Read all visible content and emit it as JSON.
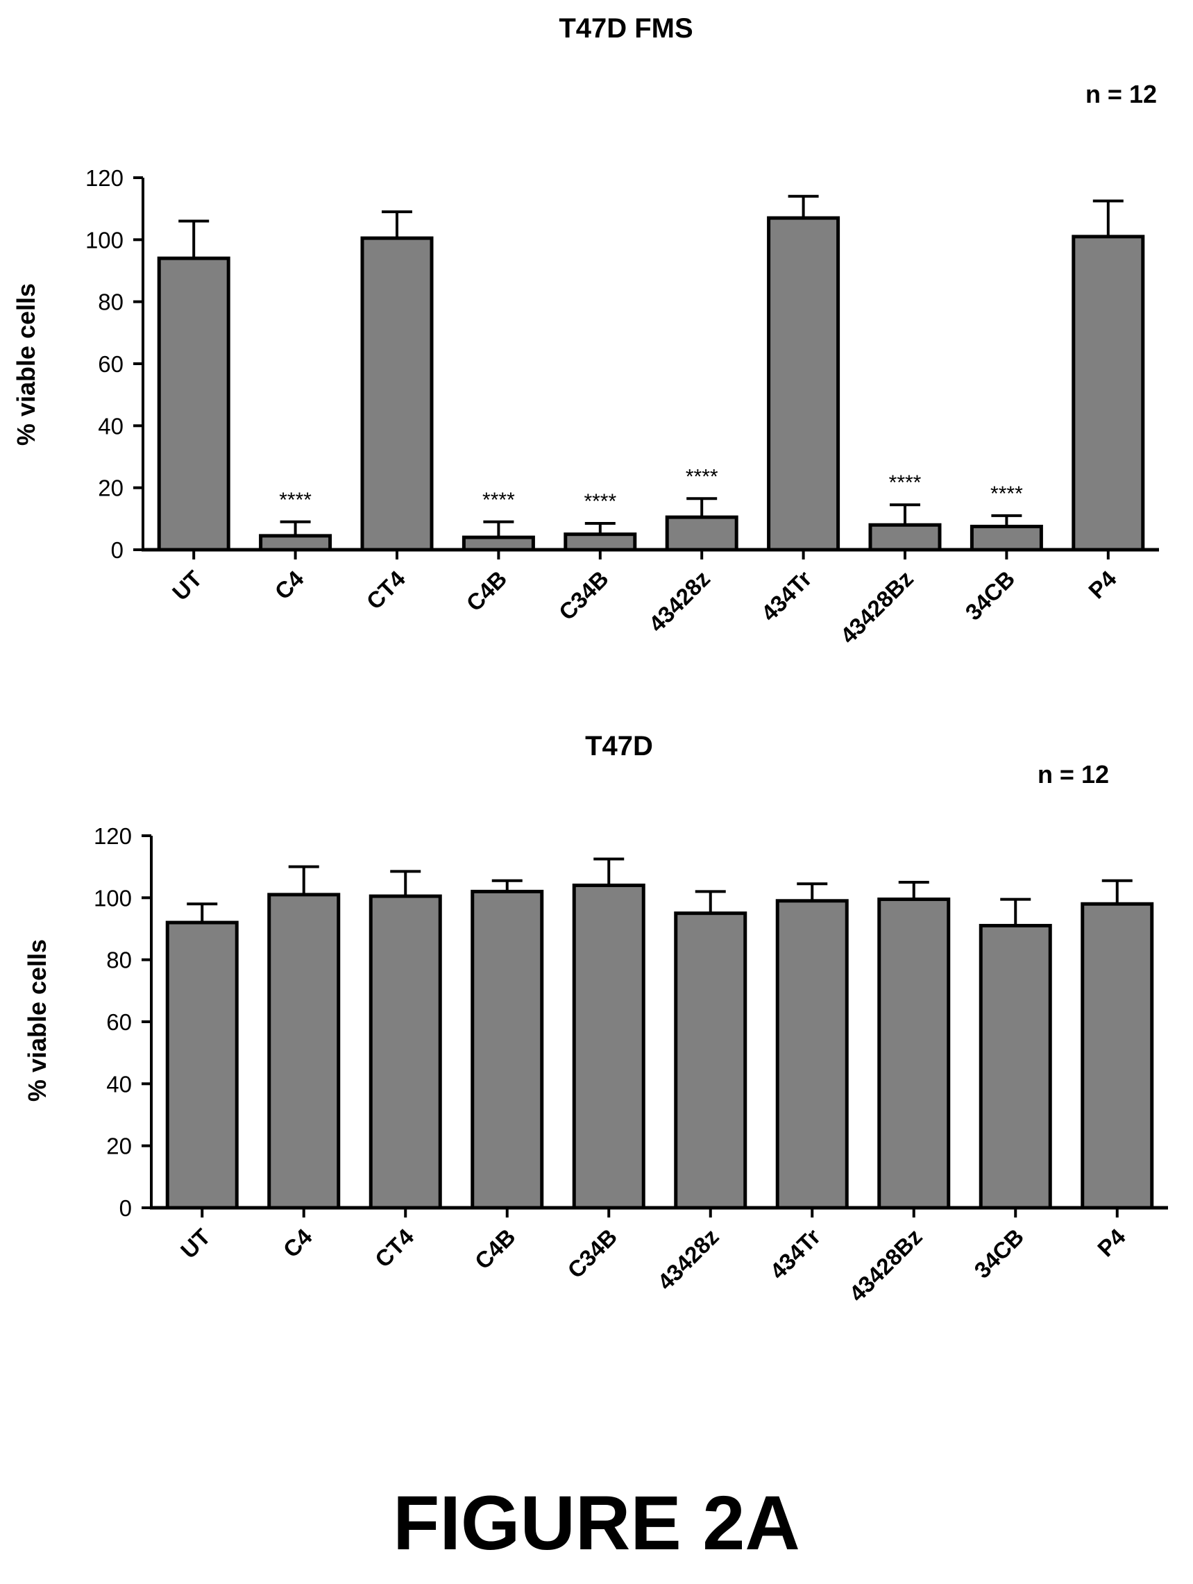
{
  "figure_label": "FIGURE 2A",
  "colors": {
    "bar_fill": "#808080",
    "bar_stroke": "#000000",
    "axis": "#000000"
  },
  "chart_data": [
    {
      "type": "bar",
      "title": "T47D FMS",
      "annotation": "n = 12",
      "xlabel": "",
      "ylabel": "% viable cells",
      "ylim": [
        0,
        120
      ],
      "yticks": [
        0,
        20,
        40,
        60,
        80,
        100,
        120
      ],
      "grid": false,
      "categories": [
        "UT",
        "C4",
        "CT4",
        "C4B",
        "C34B",
        "43428z",
        "434Tr",
        "43428Bz",
        "34CB",
        "P4"
      ],
      "values": [
        94,
        4.5,
        100.5,
        4,
        5,
        10.5,
        107,
        8,
        7.5,
        101
      ],
      "error_upper": [
        12,
        4.5,
        8.5,
        5,
        3.5,
        6,
        7,
        6.5,
        3.5,
        11.5
      ],
      "significance": [
        "",
        "****",
        "",
        "****",
        "****",
        "****",
        "",
        "****",
        "****",
        ""
      ]
    },
    {
      "type": "bar",
      "title": "T47D",
      "annotation": "n = 12",
      "xlabel": "",
      "ylabel": "% viable cells",
      "ylim": [
        0,
        120
      ],
      "yticks": [
        0,
        20,
        40,
        60,
        80,
        100,
        120
      ],
      "grid": false,
      "categories": [
        "UT",
        "C4",
        "CT4",
        "C4B",
        "C34B",
        "43428z",
        "434Tr",
        "43428Bz",
        "34CB",
        "P4"
      ],
      "values": [
        92,
        101,
        100.5,
        102,
        104,
        95,
        99,
        99.5,
        91,
        98
      ],
      "error_upper": [
        6,
        9,
        8,
        3.5,
        8.5,
        7,
        5.5,
        5.5,
        8.5,
        7.5
      ],
      "significance": [
        "",
        "",
        "",
        "",
        "",
        "",
        "",
        "",
        "",
        ""
      ]
    }
  ]
}
